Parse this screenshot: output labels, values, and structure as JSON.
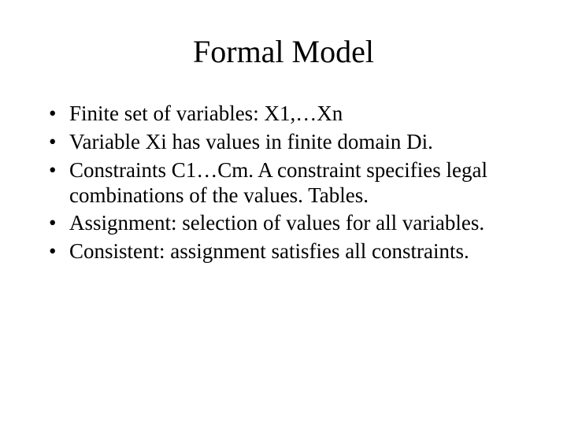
{
  "title": "Formal  Model",
  "title_fontsize": 40,
  "body_fontsize": 27,
  "text_color": "#000000",
  "background_color": "#ffffff",
  "font_family": "Times New Roman",
  "bullets": [
    "Finite set of variables: X1,…Xn",
    "Variable Xi has values in finite domain Di.",
    "Constraints C1…Cm. A constraint specifies legal combinations of the values. Tables.",
    "Assignment: selection of values for all variables.",
    "Consistent: assignment satisfies all constraints."
  ]
}
